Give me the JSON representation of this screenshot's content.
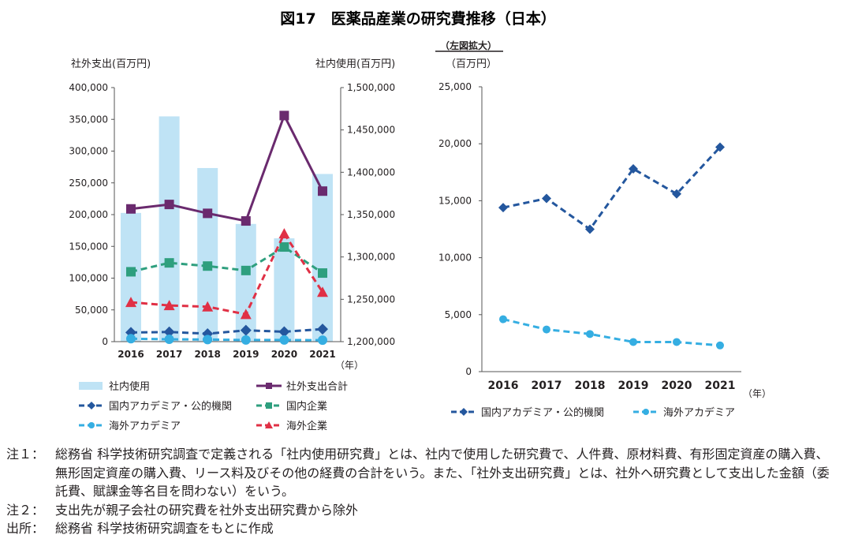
{
  "title": "図17　医薬品産業の研究費推移（日本）",
  "chart_data": [
    {
      "type": "bar+line",
      "categories": [
        "2016",
        "2017",
        "2018",
        "2019",
        "2020",
        "2021"
      ],
      "xlabel_unit": "（年）",
      "ylabel_left": "社外支出(百万円)",
      "ylabel_right": "社内使用(百万円)",
      "ylim_left": [
        0,
        400000
      ],
      "ylim_right": [
        1200000,
        1500000
      ],
      "yticks_left": [
        "0",
        "50,000",
        "100,000",
        "150,000",
        "200,000",
        "250,000",
        "300,000",
        "350,000",
        "400,000"
      ],
      "yticks_right": [
        "1,200,000",
        "1,250,000",
        "1,300,000",
        "1,350,000",
        "1,400,000",
        "1,450,000",
        "1,500,000"
      ],
      "grid": false,
      "legend_position": "bottom",
      "series": [
        {
          "name": "社内使用",
          "kind": "bar",
          "axis": "right",
          "color": "#bfe3f5",
          "values": [
            1352000,
            1466000,
            1405000,
            1339000,
            1322000,
            1398000
          ]
        },
        {
          "name": "社外支出合計",
          "kind": "line",
          "axis": "left",
          "color": "#6a2a6e",
          "dash": "solid",
          "marker": "square",
          "values": [
            209000,
            216000,
            202000,
            190000,
            356000,
            237000
          ]
        },
        {
          "name": "国内アカデミア・公的機関",
          "kind": "line",
          "axis": "left",
          "color": "#24579e",
          "dash": "dashed",
          "marker": "diamond",
          "values": [
            14400,
            15200,
            12500,
            17800,
            15600,
            19700
          ]
        },
        {
          "name": "国内企業",
          "kind": "line",
          "axis": "left",
          "color": "#2e9f7e",
          "dash": "dashed",
          "marker": "square",
          "values": [
            110000,
            124000,
            119000,
            112000,
            149000,
            108000
          ]
        },
        {
          "name": "海外アカデミア",
          "kind": "line",
          "axis": "left",
          "color": "#35aee2",
          "dash": "dashed",
          "marker": "circle",
          "values": [
            4600,
            3700,
            3300,
            2600,
            2600,
            2300
          ]
        },
        {
          "name": "海外企業",
          "kind": "line",
          "axis": "left",
          "color": "#e03045",
          "dash": "dashed",
          "marker": "triangle",
          "values": [
            62000,
            57000,
            55000,
            43000,
            170000,
            78000
          ]
        }
      ]
    },
    {
      "type": "line",
      "subtitle": "（左図拡大）",
      "ylabel": "（百万円）",
      "categories": [
        "2016",
        "2017",
        "2018",
        "2019",
        "2020",
        "2021"
      ],
      "xlabel_unit": "（年）",
      "ylim": [
        0,
        25000
      ],
      "yticks": [
        "0",
        "5,000",
        "10,000",
        "15,000",
        "20,000",
        "25,000"
      ],
      "grid": false,
      "legend_position": "bottom",
      "series": [
        {
          "name": "国内アカデミア・公的機関",
          "color": "#24579e",
          "dash": "dashed",
          "marker": "diamond",
          "values": [
            14400,
            15200,
            12500,
            17800,
            15600,
            19700
          ]
        },
        {
          "name": "海外アカデミア",
          "color": "#35aee2",
          "dash": "dashed",
          "marker": "circle",
          "values": [
            4600,
            3700,
            3300,
            2600,
            2600,
            2300
          ]
        }
      ]
    }
  ],
  "notes": [
    {
      "label": "注１：",
      "text": "総務省 科学技術研究調査で定義される「社内使用研究費」とは、社内で使用した研究費で、人件費、原材料費、有形固定資産の購入費、無形固定資産の購入費、リース料及びその他の経費の合計をいう。また、「社外支出研究費」とは、社外へ研究費として支出した金額（委託費、賦課金等名目を問わない）をいう。"
    },
    {
      "label": "注２：",
      "text": "支出先が親子会社の研究費を社外支出研究費から除外"
    },
    {
      "label": "出所：",
      "text": "総務省 科学技術研究調査をもとに作成"
    }
  ]
}
